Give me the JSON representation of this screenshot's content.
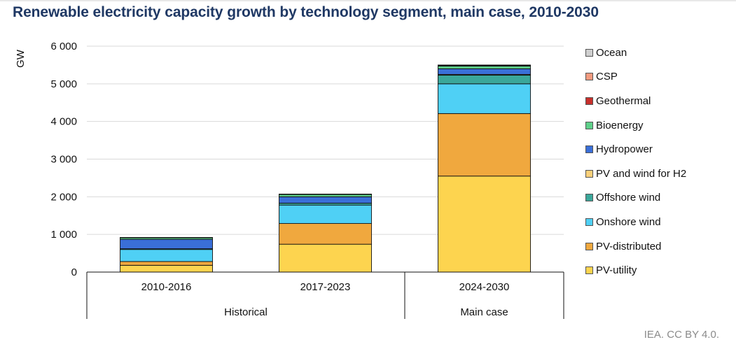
{
  "title": "Renewable electricity capacity growth by technology segment, main case, 2010-2030",
  "credit": "IEA. CC BY 4.0.",
  "chart_data": {
    "type": "bar",
    "stacked": true,
    "ylabel": "GW",
    "ylim": [
      0,
      6000
    ],
    "yticks": [
      0,
      1000,
      2000,
      3000,
      4000,
      5000,
      6000
    ],
    "ytick_labels": [
      "0",
      "1 000",
      "2 000",
      "3 000",
      "4 000",
      "5 000",
      "6 000"
    ],
    "grid": "horizontal",
    "legend_position": "right",
    "categories": [
      "2010-2016",
      "2017-2023",
      "2024-2030"
    ],
    "groups": [
      {
        "label": "Historical",
        "categories": [
          "2010-2016",
          "2017-2023"
        ]
      },
      {
        "label": "Main case",
        "categories": [
          "2024-2030"
        ]
      }
    ],
    "series": [
      {
        "name": "PV-utility",
        "color": "#fdd44f",
        "values": [
          180,
          740,
          2550
        ]
      },
      {
        "name": "PV-distributed",
        "color": "#f0a83e",
        "values": [
          100,
          550,
          1660
        ]
      },
      {
        "name": "Onshore wind",
        "color": "#4fd0f5",
        "values": [
          320,
          490,
          790
        ]
      },
      {
        "name": "Offshore wind",
        "color": "#3aa79a",
        "values": [
          20,
          50,
          230
        ]
      },
      {
        "name": "PV and wind for H2",
        "color": "#fbd07a",
        "values": [
          0,
          0,
          20
        ]
      },
      {
        "name": "Hydropower",
        "color": "#3a6fd8",
        "values": [
          250,
          170,
          150
        ]
      },
      {
        "name": "Bioenergy",
        "color": "#5ed08a",
        "values": [
          40,
          60,
          70
        ]
      },
      {
        "name": "Geothermal",
        "color": "#c8302c",
        "values": [
          5,
          7,
          15
        ]
      },
      {
        "name": "CSP",
        "color": "#f29a7f",
        "values": [
          3,
          3,
          10
        ]
      },
      {
        "name": "Ocean",
        "color": "#cfcfcf",
        "values": [
          1,
          1,
          5
        ]
      }
    ]
  }
}
